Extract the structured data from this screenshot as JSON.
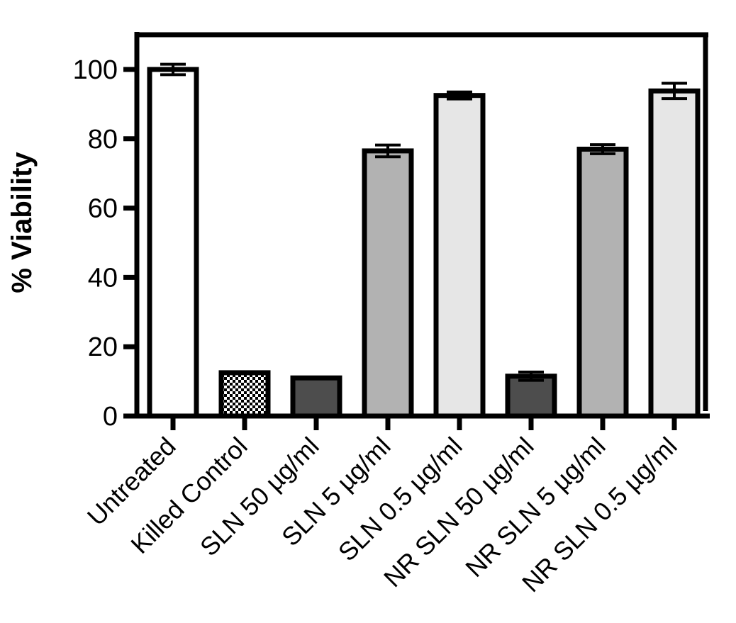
{
  "chart_data": {
    "type": "bar",
    "title": "",
    "xlabel": "",
    "ylabel": "% Viability",
    "ylim": [
      0,
      110
    ],
    "yticks": [
      0,
      20,
      40,
      60,
      80,
      100
    ],
    "grid": false,
    "legend": "none",
    "categories": [
      "Untreated",
      "Killed Control",
      "SLN 50 µg/ml",
      "SLN 5 µg/ml",
      "SLN 0.5 µg/ml",
      "NR SLN 50 µg/ml",
      "NR SLN 5 µg/ml",
      "NR SLN 0.5 µg/ml"
    ],
    "values": [
      100,
      12.5,
      11,
      76.5,
      92.5,
      11.5,
      77,
      93.8
    ],
    "errors": [
      1.5,
      0,
      0,
      1.7,
      1.0,
      1.2,
      1.3,
      2.2
    ],
    "fills": [
      "#ffffff",
      "checker",
      "#4d4d4d",
      "#b2b2b2",
      "#e6e6e6",
      "#4d4d4d",
      "#b2b2b2",
      "#e6e6e6"
    ]
  }
}
